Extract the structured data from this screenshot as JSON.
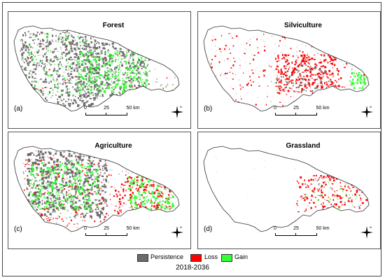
{
  "panels": [
    {
      "key": "a",
      "title": "Forest",
      "label": "(a)"
    },
    {
      "key": "b",
      "title": "Silviculture",
      "label": "(b)"
    },
    {
      "key": "c",
      "title": "Agriculture",
      "label": "(c)"
    },
    {
      "key": "d",
      "title": "Grassland",
      "label": "(d)"
    }
  ],
  "scale": {
    "t0": "0",
    "t1": "25",
    "t2": "50 km"
  },
  "north_label": "N",
  "legend": {
    "persistence": "Persistence",
    "loss": "Loss",
    "gain": "Gain",
    "colors": {
      "persistence": "#6b6b6b",
      "loss": "#ff0000",
      "gain": "#33ff33"
    }
  },
  "period": "2018-2036"
}
